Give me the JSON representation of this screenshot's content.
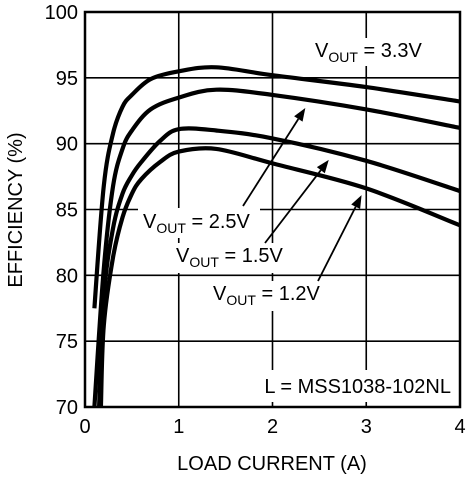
{
  "chart_data": {
    "type": "line",
    "xlabel": "LOAD CURRENT (A)",
    "ylabel": "EFFICIENCY (%)",
    "xlim": [
      0,
      4
    ],
    "ylim": [
      70,
      100
    ],
    "x_ticks": [
      "0",
      "1",
      "2",
      "3",
      "4"
    ],
    "y_ticks": [
      "70",
      "75",
      "80",
      "85",
      "90",
      "95",
      "100"
    ],
    "grid": true,
    "note": "L = MSS1038-102NL",
    "series": [
      {
        "name": "VOUT = 3.3V",
        "label_main": "V",
        "label_sub": "OUT",
        "label_rest": " = 3.3V",
        "x": [
          0.1,
          0.2,
          0.3,
          0.4,
          0.5,
          0.7,
          1.0,
          1.4,
          2.0,
          3.0,
          4.0
        ],
        "y": [
          77.5,
          86.8,
          90.8,
          92.8,
          93.7,
          94.9,
          95.5,
          95.8,
          95.2,
          94.3,
          93.2
        ]
      },
      {
        "name": "VOUT = 2.5V",
        "label_main": "V",
        "label_sub": "OUT",
        "label_rest": " = 2.5V",
        "x": [
          0.1,
          0.2,
          0.3,
          0.4,
          0.5,
          0.7,
          1.0,
          1.4,
          2.0,
          3.0,
          4.0
        ],
        "y": [
          70.0,
          80.5,
          86.8,
          89.6,
          91.0,
          92.6,
          93.5,
          94.1,
          93.7,
          92.6,
          91.2
        ]
      },
      {
        "name": "VOUT = 1.5V",
        "label_main": "V",
        "label_sub": "OUT",
        "label_rest": " = 1.5V",
        "x": [
          0.15,
          0.2,
          0.3,
          0.4,
          0.5,
          0.6,
          0.8,
          1.0,
          1.4,
          2.0,
          3.0,
          4.0
        ],
        "y": [
          70.0,
          78.5,
          83.6,
          86.2,
          87.6,
          88.6,
          90.2,
          91.1,
          91.0,
          90.4,
          88.7,
          86.4
        ]
      },
      {
        "name": "VOUT = 1.2V",
        "label_main": "V",
        "label_sub": "OUT",
        "label_rest": " = 1.2V",
        "x": [
          0.17,
          0.2,
          0.3,
          0.4,
          0.5,
          0.6,
          0.8,
          1.0,
          1.4,
          2.0,
          3.0,
          4.0
        ],
        "y": [
          70.0,
          76.2,
          81.4,
          84.4,
          86.2,
          87.3,
          88.6,
          89.4,
          89.6,
          88.5,
          86.6,
          83.8
        ]
      }
    ]
  }
}
